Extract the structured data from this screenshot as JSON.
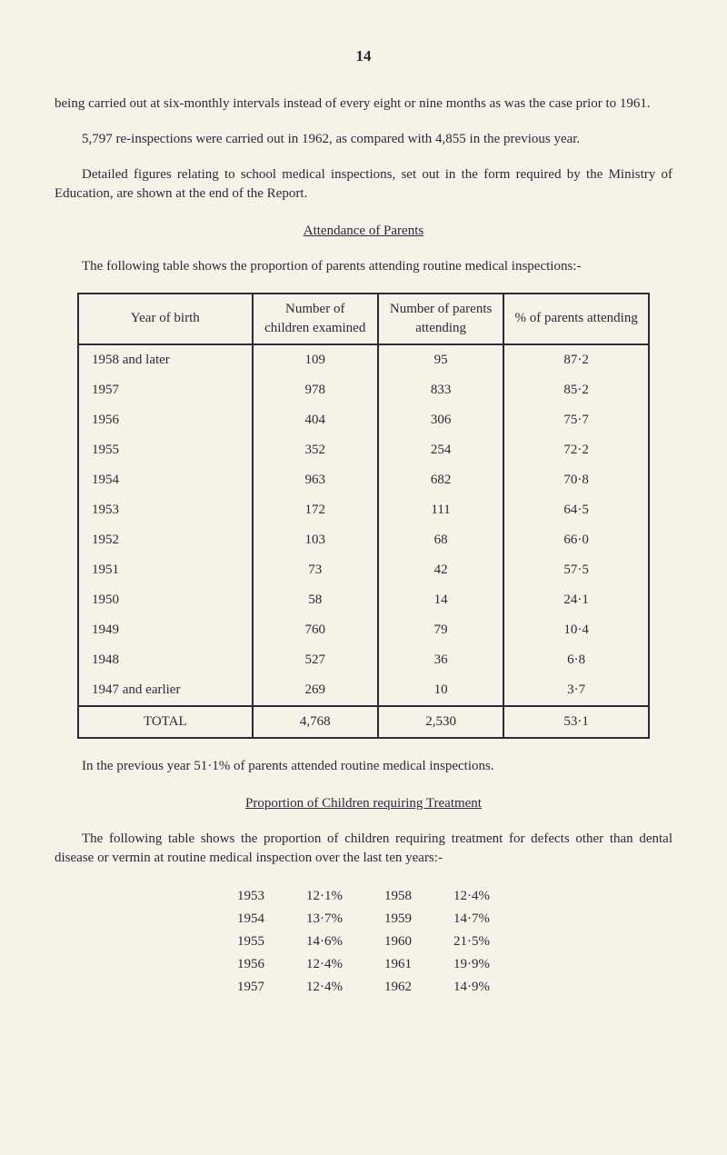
{
  "page_number": "14",
  "para1": "being carried out at six-monthly intervals instead of every eight or nine months as was the case prior to 1961.",
  "para2": "5,797 re-inspections were carried out in 1962, as compared with 4,855 in the previous year.",
  "para3": "Detailed figures relating to school medical inspections, set out in the form required by the Ministry of Education, are shown at the end of the Report.",
  "heading1": "Attendance of Parents",
  "para4": "The following table shows the proportion of parents attending routine medical inspections:-",
  "table1": {
    "headers": [
      "Year of birth",
      "Number of children examined",
      "Number of parents attending",
      "% of parents attending"
    ],
    "rows": [
      [
        "1958 and later",
        "109",
        "95",
        "87·2"
      ],
      [
        "1957",
        "978",
        "833",
        "85·2"
      ],
      [
        "1956",
        "404",
        "306",
        "75·7"
      ],
      [
        "1955",
        "352",
        "254",
        "72·2"
      ],
      [
        "1954",
        "963",
        "682",
        "70·8"
      ],
      [
        "1953",
        "172",
        "111",
        "64·5"
      ],
      [
        "1952",
        "103",
        "68",
        "66·0"
      ],
      [
        "1951",
        "73",
        "42",
        "57·5"
      ],
      [
        "1950",
        "58",
        "14",
        "24·1"
      ],
      [
        "1949",
        "760",
        "79",
        "10·4"
      ],
      [
        "1948",
        "527",
        "36",
        "6·8"
      ],
      [
        "1947 and earlier",
        "269",
        "10",
        "3·7"
      ]
    ],
    "total": [
      "TOTAL",
      "4,768",
      "2,530",
      "53·1"
    ]
  },
  "para5": "In the previous year 51·1% of parents attended routine medical inspections.",
  "heading2": "Proportion of Children requiring Treatment",
  "para6": "The following table shows the proportion of children requiring treatment for defects other than dental disease or vermin at routine medical inspection over the last ten years:-",
  "pct_rows": [
    [
      "1953",
      "12·1%",
      "1958",
      "12·4%"
    ],
    [
      "1954",
      "13·7%",
      "1959",
      "14·7%"
    ],
    [
      "1955",
      "14·6%",
      "1960",
      "21·5%"
    ],
    [
      "1956",
      "12·4%",
      "1961",
      "19·9%"
    ],
    [
      "1957",
      "12·4%",
      "1962",
      "14·9%"
    ]
  ]
}
